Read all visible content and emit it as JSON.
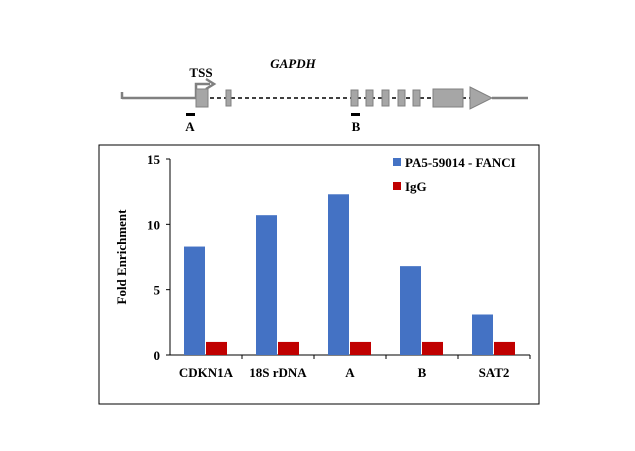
{
  "gene_diagram": {
    "gene_name": "GAPDH",
    "tss_label": "TSS",
    "amplicons": [
      "A",
      "B"
    ],
    "colors": {
      "line": "#808080",
      "exon_fill": "#a6a6a6",
      "intron_dash": "#404040",
      "arrow": "#808080"
    }
  },
  "chart_data": {
    "type": "bar",
    "categories": [
      "CDKN1A",
      "18S rDNA",
      "A",
      "B",
      "SAT2"
    ],
    "series": [
      {
        "name": "PA5-59014 - FANCI",
        "color": "#4472c4",
        "values": [
          8.3,
          10.7,
          12.3,
          6.8,
          3.1
        ]
      },
      {
        "name": "IgG",
        "color": "#c00000",
        "values": [
          1.0,
          1.0,
          1.0,
          1.0,
          1.0
        ]
      }
    ],
    "ylabel": "Fold Enrichment",
    "ylim": [
      0,
      15
    ],
    "yticks": [
      0,
      5,
      10,
      15
    ],
    "grid": false,
    "legend_position": "top-right"
  }
}
